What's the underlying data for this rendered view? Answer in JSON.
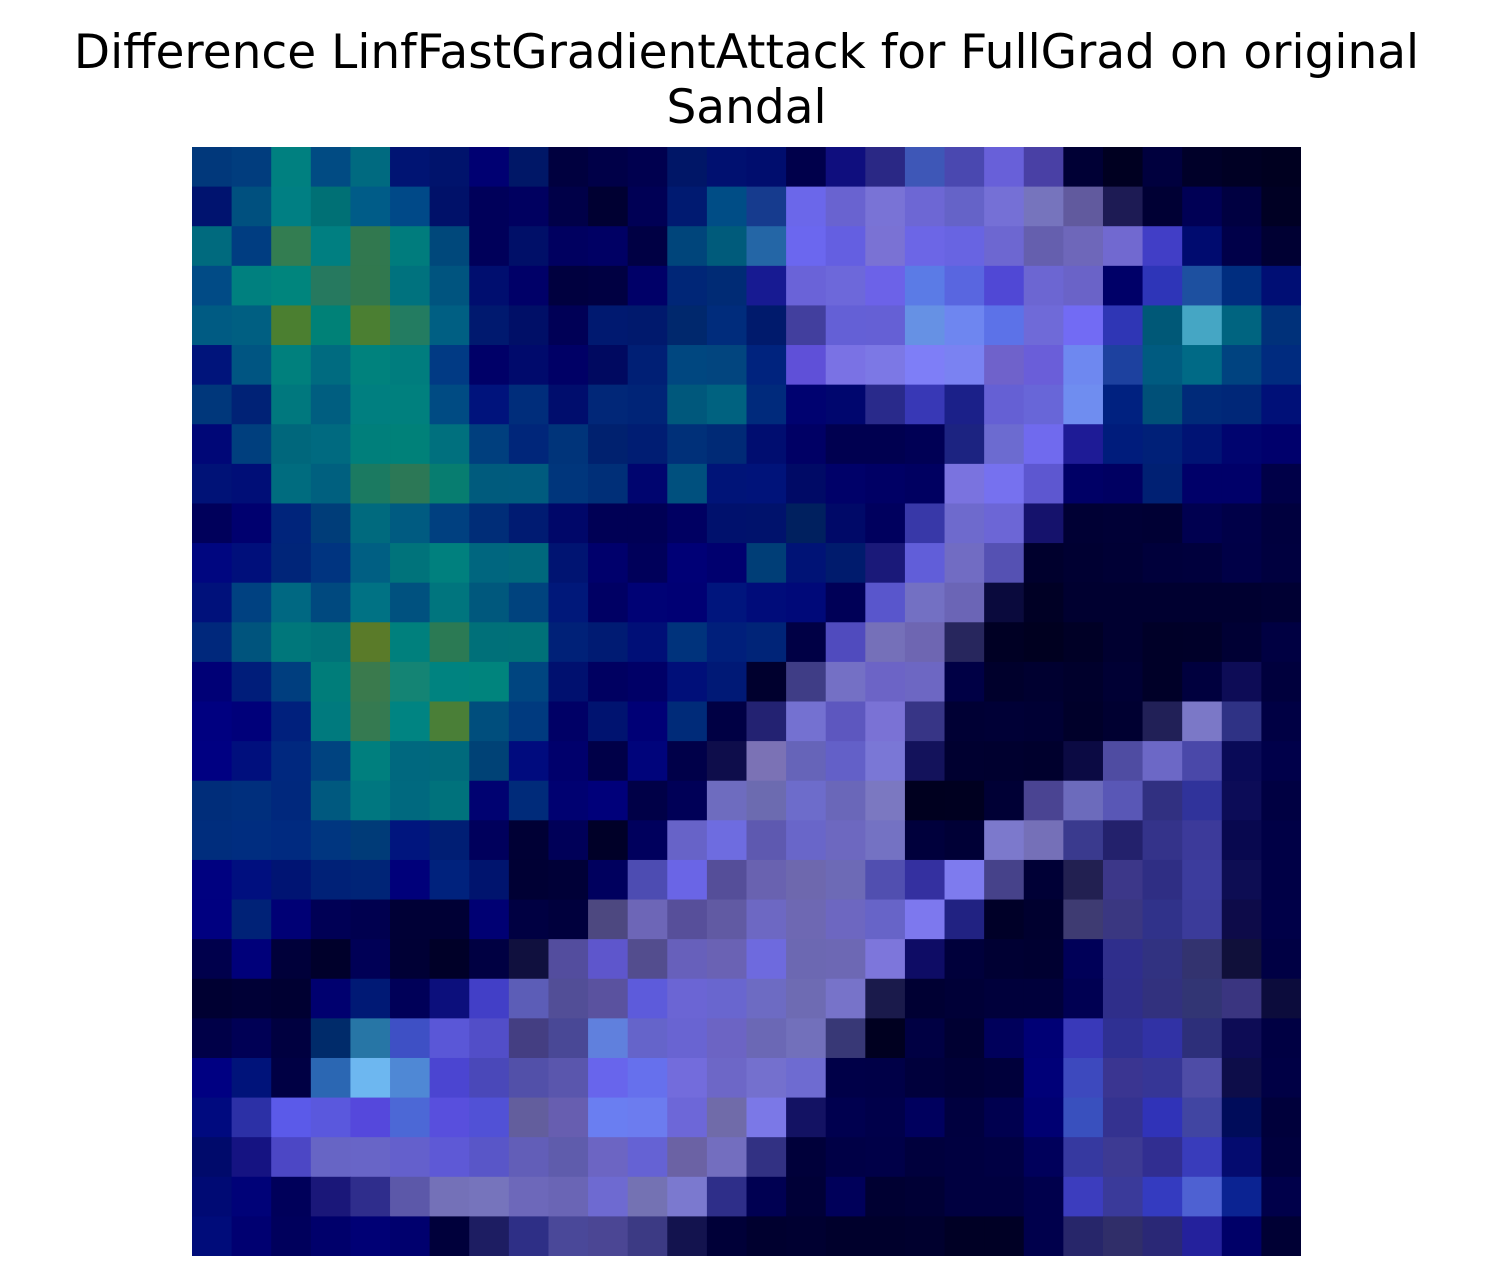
{
  "chart_data": {
    "type": "heatmap",
    "title_lines": [
      "Difference LinfFastGradientAttack for FullGrad on original",
      "Sandal"
    ],
    "xlabel": "",
    "ylabel": "",
    "axes_visible": false,
    "grid": false,
    "legend": "none",
    "rows": 28,
    "cols": 28,
    "cells": [
      [
        "#01387b",
        "#013d7e",
        "#008080",
        "#014b83",
        "#006a80",
        "#001473",
        "#00136c",
        "#000072",
        "#001767",
        "#00003f",
        "#000048",
        "#00004f",
        "#001667",
        "#001070",
        "#000d6e",
        "#00004b",
        "#0f0e7e",
        "#2a2885",
        "#3e57b7",
        "#4a48b0",
        "#6860d9",
        "#4940a5",
        "#000035",
        "#000021",
        "#00003e",
        "#000029",
        "#000024",
        "#000020"
      ],
      [
        "#00136f",
        "#00507f",
        "#007f83",
        "#007075",
        "#005c88",
        "#004988",
        "#001169",
        "#00005a",
        "#000060",
        "#000048",
        "#000032",
        "#000055",
        "#001a71",
        "#004d86",
        "#163b8e",
        "#6b67ea",
        "#6963d0",
        "#7973d6",
        "#6d67d4",
        "#6563c8",
        "#7570d6",
        "#7674bd",
        "#615a9e",
        "#1d1b54",
        "#000034",
        "#000055",
        "#000041",
        "#000024"
      ],
      [
        "#006a7e",
        "#003d81",
        "#337d51",
        "#007f81",
        "#31784f",
        "#007c7d",
        "#00487b",
        "#00005a",
        "#000f68",
        "#000060",
        "#000064",
        "#000044",
        "#00457b",
        "#005b7b",
        "#2466a6",
        "#6b67ef",
        "#645fe1",
        "#7a72d4",
        "#6c66e6",
        "#6864e2",
        "#6d67d1",
        "#655fae",
        "#6e67ba",
        "#7169d0",
        "#413ec6",
        "#000b6f",
        "#000049",
        "#000033"
      ],
      [
        "#014b86",
        "#00807f",
        "#00857d",
        "#26795f",
        "#31784e",
        "#00727e",
        "#00547f",
        "#000e6f",
        "#000068",
        "#00003f",
        "#000042",
        "#000068",
        "#002677",
        "#002b75",
        "#171a92",
        "#6a63d8",
        "#6d68da",
        "#6c62e8",
        "#5b7be6",
        "#5966e0",
        "#5048d5",
        "#6c66d2",
        "#6a63c8",
        "#000068",
        "#2e35b8",
        "#1d50a0",
        "#002d7f",
        "#000e74"
      ],
      [
        "#005b83",
        "#005f82",
        "#4b7f30",
        "#008177",
        "#4b7f32",
        "#237c61",
        "#005f83",
        "#00196f",
        "#000f67",
        "#000056",
        "#001970",
        "#00196d",
        "#00286d",
        "#002c7c",
        "#001a6c",
        "#423f9e",
        "#6460d6",
        "#6560d5",
        "#6691e4",
        "#6e86f0",
        "#5c72e8",
        "#6f6ad8",
        "#726bf4",
        "#2f36b5",
        "#005877",
        "#45a6c4",
        "#006480",
        "#00317a"
      ],
      [
        "#00147b",
        "#005582",
        "#00807d",
        "#006b80",
        "#00827d",
        "#007d7e",
        "#013a84",
        "#000068",
        "#000a6c",
        "#000066",
        "#000960",
        "#001f75",
        "#004780",
        "#02457f",
        "#00237e",
        "#5f50d8",
        "#7a72e4",
        "#7c78e5",
        "#7e7ef7",
        "#7a82f2",
        "#6f62cb",
        "#6a5ed9",
        "#6e88f0",
        "#1d419f",
        "#005b80",
        "#006a86",
        "#004380",
        "#002b7f"
      ],
      [
        "#00377b",
        "#002276",
        "#00787e",
        "#005e80",
        "#007f80",
        "#00807e",
        "#004b83",
        "#00137c",
        "#002d7b",
        "#000d6d",
        "#012778",
        "#002477",
        "#00587c",
        "#006280",
        "#002a7c",
        "#000270",
        "#00066e",
        "#292a8b",
        "#3838b6",
        "#1b2089",
        "#6560d4",
        "#6866d8",
        "#6f8df0",
        "#002180",
        "#005078",
        "#002a79",
        "#002778",
        "#001078"
      ],
      [
        "#000777",
        "#003f7e",
        "#00677c",
        "#006a80",
        "#007f7b",
        "#008179",
        "#00707e",
        "#003f7e",
        "#00267a",
        "#00347a",
        "#00216f",
        "#001d73",
        "#003079",
        "#002a76",
        "#000d70",
        "#000065",
        "#000050",
        "#000050",
        "#000055",
        "#1c2381",
        "#6c6bd0",
        "#706aee",
        "#1e1b96",
        "#001c7c",
        "#002078",
        "#001374",
        "#00046f",
        "#00006c"
      ],
      [
        "#001277",
        "#000e77",
        "#006c7f",
        "#00607f",
        "#1b7a61",
        "#2c7856",
        "#077d70",
        "#005b7d",
        "#005b7e",
        "#00367c",
        "#002f78",
        "#00056f",
        "#00507e",
        "#001478",
        "#00137a",
        "#000a66",
        "#000169",
        "#000065",
        "#000061",
        "#7a73df",
        "#7671ef",
        "#5d57d0",
        "#000066",
        "#000062",
        "#002073",
        "#000069",
        "#000069",
        "#000048"
      ],
      [
        "#00005b",
        "#00006f",
        "#00247b",
        "#003d79",
        "#006a7e",
        "#005b81",
        "#004080",
        "#002d78",
        "#001b72",
        "#000769",
        "#000055",
        "#000055",
        "#000062",
        "#00116d",
        "#00126c",
        "#00205f",
        "#000968",
        "#00005e",
        "#3838a8",
        "#6e6acd",
        "#6c66d6",
        "#15126c",
        "#000034",
        "#000036",
        "#000034",
        "#000050",
        "#000048",
        "#00003e"
      ],
      [
        "#000680",
        "#000f7b",
        "#002579",
        "#003480",
        "#005f83",
        "#00737b",
        "#00807e",
        "#00667f",
        "#00687c",
        "#001472",
        "#00006c",
        "#00005a",
        "#000076",
        "#00006f",
        "#003e77",
        "#001376",
        "#001b6d",
        "#1a1979",
        "#615ed9",
        "#716cc3",
        "#5551b3",
        "#00002d",
        "#000032",
        "#000035",
        "#00003b",
        "#00003d",
        "#000047",
        "#00003f"
      ],
      [
        "#00117b",
        "#004181",
        "#006882",
        "#00497f",
        "#007284",
        "#00517f",
        "#00757e",
        "#00587d",
        "#00437e",
        "#00187a",
        "#000064",
        "#000275",
        "#000074",
        "#00157d",
        "#000c7a",
        "#000979",
        "#000057",
        "#5956cc",
        "#7370c3",
        "#6b65b6",
        "#0a0a3d",
        "#000025",
        "#000030",
        "#000030",
        "#000030",
        "#000030",
        "#000030",
        "#000033"
      ],
      [
        "#00287c",
        "#00547d",
        "#00777b",
        "#007279",
        "#5a7b29",
        "#00807d",
        "#2b7a54",
        "#007079",
        "#007178",
        "#002178",
        "#001b73",
        "#000f77",
        "#00337c",
        "#001f7b",
        "#002478",
        "#000045",
        "#504bbe",
        "#7570b9",
        "#6e66b2",
        "#27265d",
        "#000024",
        "#000020",
        "#000026",
        "#000030",
        "#000028",
        "#000029",
        "#000034",
        "#000042"
      ],
      [
        "#000076",
        "#001d7a",
        "#003e7f",
        "#007d7a",
        "#3a7a4d",
        "#148474",
        "#008380",
        "#00847d",
        "#004580",
        "#00106f",
        "#000061",
        "#000067",
        "#000f79",
        "#001976",
        "#00002e",
        "#3f3d86",
        "#7470c5",
        "#6c64c6",
        "#6d67c3",
        "#000045",
        "#00002c",
        "#000030",
        "#00002c",
        "#000034",
        "#000028",
        "#00003e",
        "#0d0c56",
        "#00003d"
      ],
      [
        "#000080",
        "#00007a",
        "#00207d",
        "#007a7e",
        "#357a51",
        "#008482",
        "#4a7f37",
        "#004e7d",
        "#003a7f",
        "#000066",
        "#001370",
        "#000076",
        "#002b79",
        "#000044",
        "#232272",
        "#7471d1",
        "#5d57bf",
        "#7a72d5",
        "#373586",
        "#000034",
        "#000036",
        "#000034",
        "#00002a",
        "#000031",
        "#212057",
        "#7b78c7",
        "#2f3285",
        "#000044"
      ],
      [
        "#000082",
        "#000f7d",
        "#00287f",
        "#004380",
        "#007f7e",
        "#00687f",
        "#006a7c",
        "#004276",
        "#000b7e",
        "#00006c",
        "#000048",
        "#00047b",
        "#000049",
        "#0e0d4b",
        "#7b72b5",
        "#6664b9",
        "#6360c8",
        "#7a77d6",
        "#13125b",
        "#000030",
        "#00002f",
        "#00002d",
        "#0b0a43",
        "#4f4ca2",
        "#6c68c6",
        "#4a48a9",
        "#090a57",
        "#00004a"
      ],
      [
        "#002d7a",
        "#002f7d",
        "#00287d",
        "#00597f",
        "#007780",
        "#00697f",
        "#00727c",
        "#000271",
        "#002b7a",
        "#000171",
        "#00007a",
        "#000047",
        "#000057",
        "#6e6cbf",
        "#6c6bb0",
        "#6d6ccb",
        "#6a67b9",
        "#7b78c1",
        "#00001f",
        "#000020",
        "#000035",
        "#4a4492",
        "#6c6bbc",
        "#5957b6",
        "#313081",
        "#30339b",
        "#0c0c57",
        "#000042"
      ],
      [
        "#002d7d",
        "#002d80",
        "#002a80",
        "#003680",
        "#003b78",
        "#00157e",
        "#001e74",
        "#00005c",
        "#000035",
        "#000058",
        "#000028",
        "#00005d",
        "#6763c8",
        "#6e6ce0",
        "#5e59b0",
        "#6966c9",
        "#6d68c0",
        "#7472c3",
        "#00003c",
        "#000036",
        "#7c79cc",
        "#7570b8",
        "#3a3a8e",
        "#23216c",
        "#34338a",
        "#3c3a9a",
        "#08084f",
        "#000046"
      ],
      [
        "#000180",
        "#000f7f",
        "#001473",
        "#002177",
        "#002477",
        "#00007a",
        "#00227d",
        "#00146e",
        "#000034",
        "#000037",
        "#00005e",
        "#4d4cb2",
        "#6a65e6",
        "#554e99",
        "#6962b0",
        "#6e68ae",
        "#6d6ab6",
        "#514fb0",
        "#3430a0",
        "#7e7bee",
        "#46428a",
        "#000036",
        "#222051",
        "#3c3789",
        "#2f2e84",
        "#3c3c9d",
        "#0d0d53",
        "#000046"
      ],
      [
        "#000080",
        "#002277",
        "#000075",
        "#000055",
        "#00004f",
        "#000036",
        "#000035",
        "#000073",
        "#000042",
        "#00003d",
        "#4d4880",
        "#6d66b7",
        "#574f9a",
        "#615aa3",
        "#6d68c3",
        "#6e68b3",
        "#6d67c1",
        "#6764c8",
        "#7d78ee",
        "#212282",
        "#000028",
        "#00002f",
        "#3e3b72",
        "#3a3781",
        "#30328a",
        "#3b3b9a",
        "#0d0b49",
        "#000048"
      ],
      [
        "#00004c",
        "#00007a",
        "#00003a",
        "#00002b",
        "#000056",
        "#000035",
        "#000028",
        "#000042",
        "#10103e",
        "#534d9e",
        "#5e56cc",
        "#534d8e",
        "#6760bb",
        "#6a62b4",
        "#6e6ade",
        "#6c68b2",
        "#6d68b4",
        "#7d76db",
        "#0e0c65",
        "#00003b",
        "#000033",
        "#000031",
        "#000058",
        "#2f2e8c",
        "#313281",
        "#33336f",
        "#10103a",
        "#000044"
      ],
      [
        "#000032",
        "#000036",
        "#000032",
        "#00006f",
        "#001975",
        "#000058",
        "#0c0f7c",
        "#423fc7",
        "#5c5db7",
        "#524e97",
        "#5a529f",
        "#5d5bdb",
        "#6b65d4",
        "#6966cf",
        "#6d6bc3",
        "#6e6bb3",
        "#7773c9",
        "#1a1a4b",
        "#000033",
        "#000037",
        "#00003b",
        "#00003b",
        "#000052",
        "#2f2e8a",
        "#32317e",
        "#323574",
        "#3a3580",
        "#0c0c3c"
      ],
      [
        "#000048",
        "#000055",
        "#000040",
        "#002b6a",
        "#2776a6",
        "#3e50c5",
        "#5a57d7",
        "#524ec8",
        "#443e82",
        "#494896",
        "#6080dd",
        "#6564ca",
        "#6964d2",
        "#6c64c4",
        "#6b68b5",
        "#7270bb",
        "#383876",
        "#000020",
        "#000043",
        "#000032",
        "#00005b",
        "#000075",
        "#3939b9",
        "#2f3093",
        "#3132a5",
        "#2d2f7a",
        "#0d0c55",
        "#000043"
      ],
      [
        "#000082",
        "#00137a",
        "#000044",
        "#2b67b3",
        "#6db7f0",
        "#4f88d5",
        "#4b45d1",
        "#4a48b9",
        "#5250a9",
        "#5a56ad",
        "#6865ec",
        "#6670ed",
        "#736cdc",
        "#6d67c7",
        "#7470ce",
        "#6e6bd1",
        "#000048",
        "#000047",
        "#00003c",
        "#000037",
        "#00003b",
        "#000078",
        "#3d49be",
        "#3a3591",
        "#363696",
        "#4e4ca6",
        "#0d0d49",
        "#000045"
      ],
      [
        "#000a7f",
        "#2c30a6",
        "#5b5ae9",
        "#5a58dd",
        "#5548dc",
        "#4c68d6",
        "#584fdd",
        "#5151d6",
        "#635e9d",
        "#675eb0",
        "#6a7ef1",
        "#6c7cef",
        "#6d67d8",
        "#706ba9",
        "#7b78e7",
        "#131263",
        "#00004f",
        "#00004a",
        "#00005e",
        "#00003f",
        "#00004f",
        "#000072",
        "#3950be",
        "#343290",
        "#3033b8",
        "#4145a2",
        "#000c5a",
        "#00003b"
      ],
      [
        "#000a6b",
        "#151382",
        "#4c47c5",
        "#6765c5",
        "#6865c7",
        "#6460cc",
        "#5e59d6",
        "#5956c8",
        "#625eb8",
        "#5f5cac",
        "#6c65c3",
        "#6562d4",
        "#6b62a4",
        "#736ebf",
        "#323183",
        "#00003a",
        "#000046",
        "#000048",
        "#00003d",
        "#000040",
        "#000043",
        "#00005b",
        "#3639a0",
        "#3d3a93",
        "#312e91",
        "#393cbb",
        "#040b6f",
        "#00003e"
      ],
      [
        "#000a74",
        "#000278",
        "#00005a",
        "#1a1779",
        "#2f2d8c",
        "#5c58a9",
        "#7471b8",
        "#7674bc",
        "#6d68ba",
        "#6a65b5",
        "#6e6ad1",
        "#7472b3",
        "#7b79cf",
        "#2e2e89",
        "#000052",
        "#000037",
        "#00005a",
        "#000032",
        "#000035",
        "#000040",
        "#000040",
        "#00004c",
        "#3c3dbe",
        "#3a3a9a",
        "#343bc0",
        "#4e61d2",
        "#0b2392",
        "#00004a"
      ],
      [
        "#000c7a",
        "#000071",
        "#00005c",
        "#00006b",
        "#000075",
        "#00006e",
        "#00003b",
        "#1d1d62",
        "#2e2f86",
        "#4a4899",
        "#4b4694",
        "#3c3a84",
        "#13134e",
        "#000038",
        "#00002f",
        "#000031",
        "#00002c",
        "#00002c",
        "#00002e",
        "#000025",
        "#000025",
        "#00004c",
        "#27266a",
        "#302e69",
        "#2a2876",
        "#24219c",
        "#000068",
        "#000034"
      ]
    ]
  }
}
